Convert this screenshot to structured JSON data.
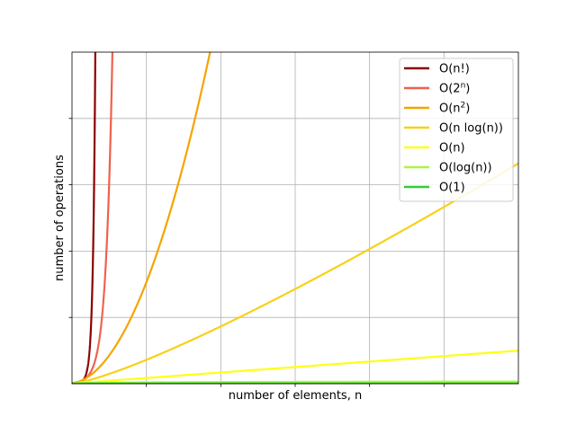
{
  "chart_data": {
    "type": "line",
    "title": "",
    "xlabel": "number of elements, n",
    "ylabel": "number of operations",
    "xlim": [
      1,
      100
    ],
    "ylim": [
      0,
      1000
    ],
    "x_ticks_labeled": false,
    "y_ticks_labeled": false,
    "grid": true,
    "legend_position": "upper-right",
    "series": [
      {
        "name": "O(n!)",
        "label": {
          "base": "O(n!)",
          "sup": "",
          "tail": ""
        },
        "color": "#8b0000",
        "function": "factorial"
      },
      {
        "name": "O(2^n)",
        "label": {
          "base": "O(2",
          "sup": "n",
          "tail": ")"
        },
        "color": "#f0604d",
        "function": "exponential"
      },
      {
        "name": "O(n^2)",
        "label": {
          "base": "O(n",
          "sup": "2",
          "tail": ")"
        },
        "color": "#f5a400",
        "function": "quadratic"
      },
      {
        "name": "O(n log(n))",
        "label": {
          "base": "O(n log(n))",
          "sup": "",
          "tail": ""
        },
        "color": "#f7d117",
        "function": "linearithmic"
      },
      {
        "name": "O(n)",
        "label": {
          "base": "O(n)",
          "sup": "",
          "tail": ""
        },
        "color": "#ffff14",
        "function": "linear"
      },
      {
        "name": "O(log(n))",
        "label": {
          "base": "O(log(n))",
          "sup": "",
          "tail": ""
        },
        "color": "#adf542",
        "function": "logarithmic"
      },
      {
        "name": "O(1)",
        "label": {
          "base": "O(1)",
          "sup": "",
          "tail": ""
        },
        "color": "#32cd32",
        "function": "constant"
      }
    ]
  }
}
